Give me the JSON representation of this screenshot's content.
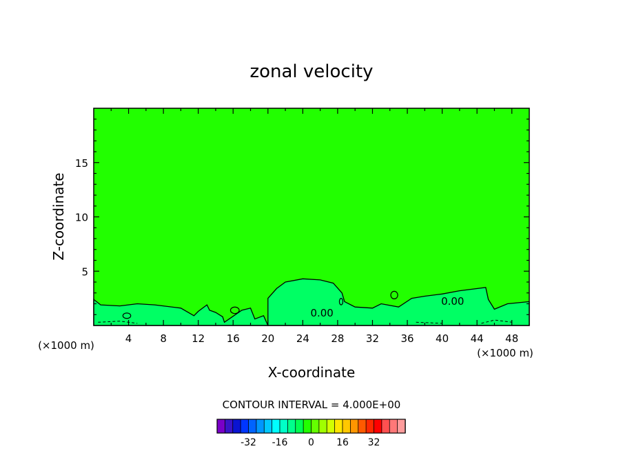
{
  "chart_data": {
    "type": "contour",
    "title": "zonal velocity",
    "xlabel": "X-coordinate",
    "ylabel": "Z-coordinate",
    "x_units": "(×1000 m)",
    "x_units_right": "(×1000 m)",
    "xlim": [
      0,
      50
    ],
    "ylim": [
      0,
      20
    ],
    "x_ticks": [
      4,
      8,
      12,
      16,
      20,
      24,
      28,
      32,
      36,
      40,
      44,
      48
    ],
    "y_ticks": [
      5,
      10,
      15
    ],
    "x_tick_labels": [
      "4",
      "8",
      "12",
      "16",
      "20",
      "24",
      "28",
      "32",
      "36",
      "40",
      "44",
      "48"
    ],
    "y_tick_labels": [
      "5",
      "10",
      "15"
    ],
    "contour_interval_text": "CONTOUR INTERVAL = 4.000E+00",
    "contour_labels": [
      {
        "text": "0.00",
        "x": 26.2,
        "y": 1.2
      },
      {
        "text": "0.00",
        "x": 41.2,
        "y": 2.3
      }
    ],
    "background_fill": "#22ff00",
    "colorbar": {
      "levels": [
        -40,
        -36,
        -32,
        -28,
        -24,
        -20,
        -16,
        -12,
        -8,
        -4,
        0,
        4,
        8,
        12,
        16,
        20,
        24,
        28,
        32,
        36,
        40
      ],
      "colors": [
        "#7a00c8",
        "#3a14c8",
        "#0a14d2",
        "#0036ff",
        "#0064ff",
        "#0096ff",
        "#00c8ff",
        "#00ffff",
        "#00ffc8",
        "#00ff8c",
        "#00ff50",
        "#22ff00",
        "#64ff00",
        "#a0ff00",
        "#d2ff00",
        "#ffe600",
        "#ffc800",
        "#ff9600",
        "#ff5a00",
        "#ff2800",
        "#ff0000",
        "#ff5050",
        "#ff7878",
        "#ff9c9c"
      ],
      "tick_labels": [
        "-32",
        "-16",
        "0",
        "16",
        "32"
      ],
      "tick_values": [
        -32,
        -16,
        0,
        16,
        32
      ]
    },
    "regions": [
      {
        "level": "0 to 4",
        "color": "#00ff64",
        "outline": [
          [
            0,
            2.4
          ],
          [
            0.8,
            1.9
          ],
          [
            3,
            1.8
          ],
          [
            5,
            2.0
          ],
          [
            7,
            1.9
          ],
          [
            10,
            1.6
          ],
          [
            11.5,
            0.9
          ],
          [
            12,
            1.3
          ],
          [
            13,
            1.9
          ],
          [
            13.3,
            1.4
          ],
          [
            14,
            1.2
          ],
          [
            14.8,
            0.8
          ],
          [
            15,
            0.3
          ],
          [
            17,
            1.4
          ],
          [
            18,
            1.6
          ],
          [
            18.5,
            0.6
          ],
          [
            19.5,
            0.9
          ],
          [
            20,
            0
          ],
          [
            0,
            0
          ]
        ]
      },
      {
        "level": "0 to 4",
        "color": "#00ff64",
        "outline": [
          [
            20,
            2.5
          ],
          [
            21,
            3.4
          ],
          [
            22,
            4.0
          ],
          [
            24,
            4.3
          ],
          [
            26,
            4.2
          ],
          [
            27.5,
            3.9
          ],
          [
            28.5,
            3.0
          ],
          [
            28.8,
            2.2
          ],
          [
            30,
            1.7
          ],
          [
            32,
            1.6
          ],
          [
            33,
            2.0
          ],
          [
            35,
            1.7
          ],
          [
            36.5,
            2.5
          ],
          [
            38,
            2.7
          ],
          [
            40,
            2.9
          ],
          [
            42,
            3.2
          ],
          [
            45,
            3.5
          ],
          [
            45.3,
            2.4
          ],
          [
            46,
            1.5
          ],
          [
            47.5,
            2.0
          ],
          [
            50,
            2.2
          ],
          [
            50,
            0
          ],
          [
            20,
            0
          ]
        ]
      }
    ]
  }
}
